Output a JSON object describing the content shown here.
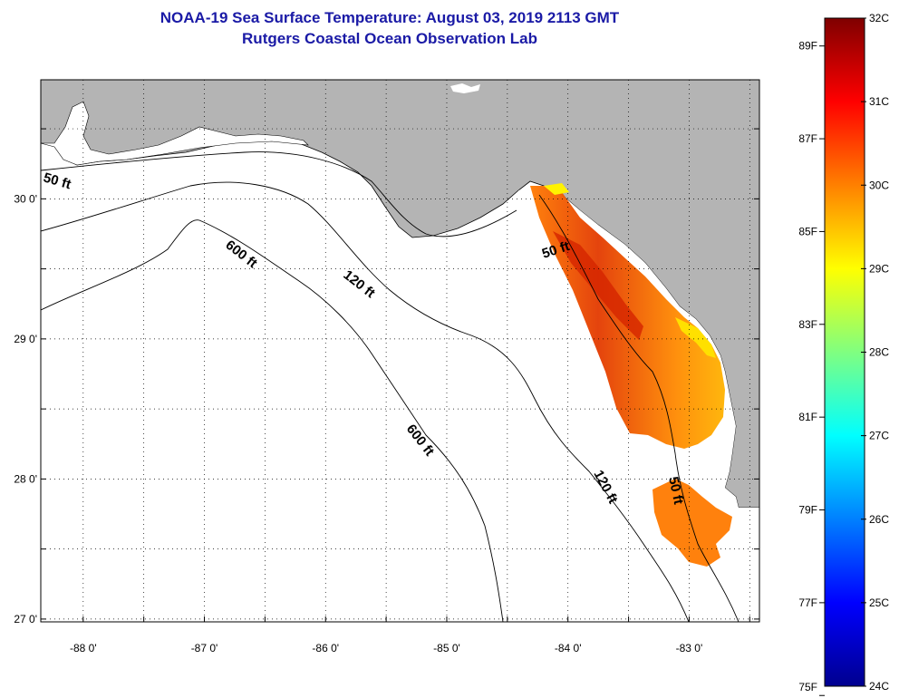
{
  "header": {
    "title": "NOAA-19 Sea Surface Temperature:  August 03, 2019 2113 GMT",
    "subtitle": "Rutgers Coastal Ocean Observation Lab"
  },
  "map": {
    "lon_range": [
      -88.35,
      -82.42
    ],
    "lat_range": [
      26.98,
      30.85
    ],
    "lon_ticks": [
      "-88 0'",
      "-87 0'",
      "-86 0'",
      "-85 0'",
      "-84 0'",
      "-83 0'"
    ],
    "lat_ticks": [
      "30 0'",
      "29 0'",
      "28 0'",
      "27 0'"
    ],
    "land_color": "#b4b4b4",
    "ocean_color": "#ffffff",
    "grid": "dotted"
  },
  "depth_labels": [
    "50 ft",
    "600 ft",
    "120 ft",
    "50 ft",
    "600 ft",
    "120 ft",
    "50 ft"
  ],
  "colorbar": {
    "celsius": [
      "32C",
      "31C",
      "30C",
      "29C",
      "28C",
      "27C",
      "26C",
      "25C",
      "24C"
    ],
    "fahrenheit": [
      "89F",
      "87F",
      "85F",
      "83F",
      "81F",
      "79F",
      "77F",
      "75F"
    ],
    "colors": [
      "#7f0000",
      "#ff0000",
      "#ff8000",
      "#ffff00",
      "#80ff80",
      "#00ffff",
      "#0080ff",
      "#0000ff",
      "#00008f"
    ]
  }
}
